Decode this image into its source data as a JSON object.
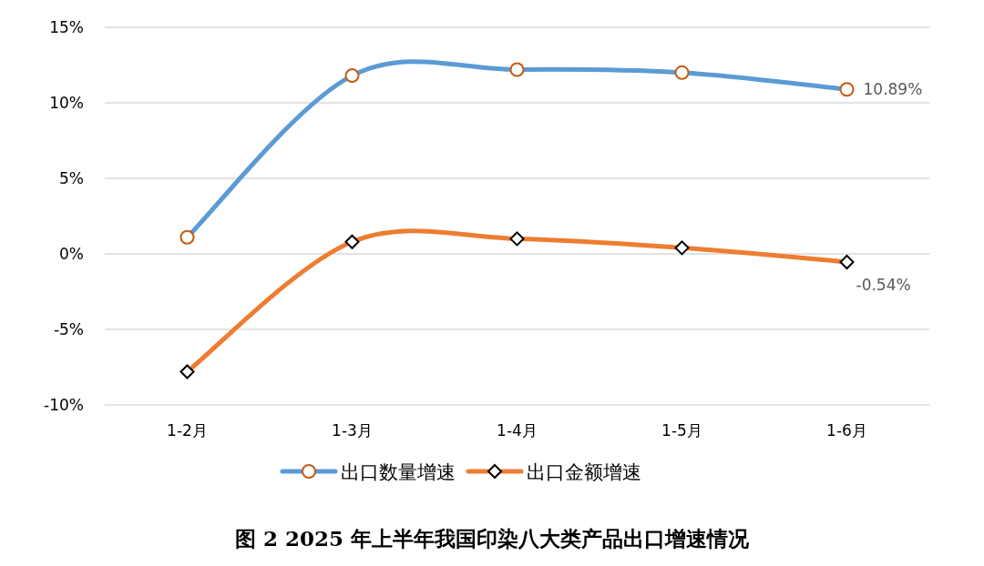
{
  "chart_data": {
    "type": "line",
    "title": "图 2 2025 年上半年我国印染八大类产品出口增速情况",
    "categories": [
      "1-2月",
      "1-3月",
      "1-4月",
      "1-5月",
      "1-6月"
    ],
    "series": [
      {
        "name": "出口数量增速",
        "color": "#5b9bd5",
        "marker": "circle",
        "values": [
          1.1,
          11.8,
          12.2,
          12.0,
          10.89
        ],
        "value_labels": [
          null,
          null,
          null,
          null,
          "10.89%"
        ]
      },
      {
        "name": "出口金额增速",
        "color": "#ed7d31",
        "marker": "diamond",
        "values": [
          -7.8,
          0.8,
          1.0,
          0.4,
          -0.54
        ],
        "value_labels": [
          null,
          null,
          null,
          null,
          "-0.54%"
        ]
      }
    ],
    "ylim": [
      -10,
      15
    ],
    "yticks": [
      {
        "value": -10,
        "label": "-10%"
      },
      {
        "value": -5,
        "label": "-5%"
      },
      {
        "value": 0,
        "label": "0%"
      },
      {
        "value": 5,
        "label": "5%"
      },
      {
        "value": 10,
        "label": "10%"
      },
      {
        "value": 15,
        "label": "15%"
      }
    ],
    "grid": "y",
    "legend": "bottom"
  }
}
